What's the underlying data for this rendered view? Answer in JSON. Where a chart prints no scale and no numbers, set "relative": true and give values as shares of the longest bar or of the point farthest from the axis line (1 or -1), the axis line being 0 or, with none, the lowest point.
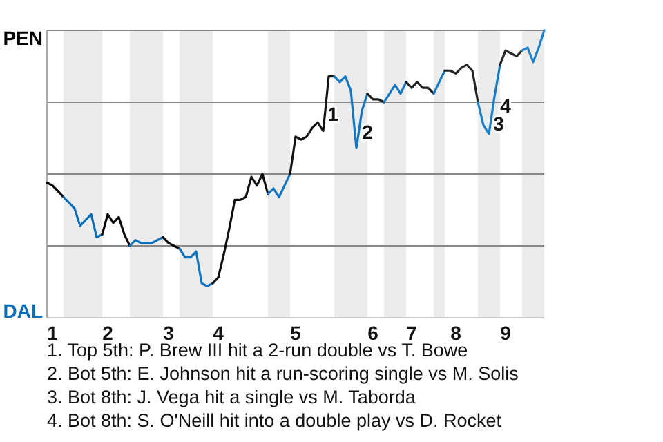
{
  "chart_data": {
    "type": "line",
    "relative": true,
    "grid": true,
    "marker": "none",
    "line_style": "solid",
    "categories": [
      null,
      "1",
      null,
      null,
      null,
      null,
      null,
      null,
      null,
      null,
      null,
      "2",
      null,
      null,
      null,
      null,
      null,
      null,
      null,
      null,
      null,
      null,
      "3",
      null,
      null,
      null,
      null,
      null,
      null,
      null,
      null,
      "4",
      null,
      null,
      null,
      null,
      null,
      null,
      null,
      null,
      null,
      null,
      null,
      null,
      null,
      "5",
      null,
      null,
      null,
      null,
      null,
      null,
      null,
      null,
      null,
      null,
      null,
      null,
      null,
      "6",
      null,
      null,
      null,
      null,
      null,
      null,
      "7",
      null,
      null,
      null,
      null,
      null,
      null,
      null,
      "8",
      null,
      null,
      null,
      null,
      null,
      null,
      null,
      null,
      "9",
      null,
      null,
      null,
      null,
      null,
      null,
      null
    ],
    "series": [
      {
        "name": "PEN",
        "color": "#000000",
        "values": [
          0.47,
          0.46,
          0.44,
          0.42,
          null,
          null,
          null,
          null,
          null,
          null,
          null,
          null,
          null,
          null,
          null,
          null,
          null,
          null,
          null,
          null,
          null,
          null,
          null,
          null,
          null,
          null,
          null,
          null,
          null,
          null,
          null,
          null,
          null,
          null,
          null,
          null,
          null,
          null,
          null,
          null,
          null,
          null,
          null,
          null,
          null,
          null,
          null,
          null,
          null,
          null,
          null,
          null,
          null,
          null,
          null,
          null,
          null,
          null,
          null,
          null,
          null,
          null,
          null,
          null,
          null,
          null,
          null,
          null,
          null,
          null,
          null,
          null,
          null,
          null,
          null,
          null,
          null,
          null,
          null,
          null,
          null,
          null,
          null,
          null,
          null,
          null,
          null,
          null,
          null,
          null,
          null
        ]
      },
      {
        "name": "DAL",
        "color": "#0a6fb8",
        "values": [
          null,
          null,
          null,
          0.42,
          0.4,
          0.38,
          0.32,
          0.34,
          0.36,
          0.28,
          0.29,
          null,
          null,
          null,
          null,
          null,
          null,
          null,
          null,
          null,
          null,
          null,
          null,
          null,
          null,
          null,
          null,
          null,
          null,
          null,
          null,
          null,
          null,
          null,
          null,
          null,
          null,
          null,
          null,
          null,
          null,
          null,
          null,
          null,
          null,
          null,
          null,
          null,
          null,
          null,
          null,
          null,
          null,
          null,
          null,
          null,
          null,
          null,
          null,
          null,
          null,
          null,
          null,
          null,
          null,
          null,
          null,
          null,
          null,
          null,
          null,
          null,
          null,
          null,
          null,
          null,
          null,
          null,
          null,
          null,
          null,
          null,
          null,
          null,
          null,
          null,
          null,
          null,
          null,
          null,
          null
        ]
      },
      {
        "color": "#050505",
        "values": [
          null,
          null,
          null,
          null,
          null,
          null,
          null,
          null,
          null,
          null,
          0.29,
          0.36,
          0.33,
          0.35,
          0.29,
          0.25,
          null,
          null,
          null,
          null,
          null,
          null,
          null,
          null,
          null,
          null,
          null,
          null,
          null,
          null,
          null,
          null,
          null,
          null,
          null,
          null,
          null,
          null,
          null,
          null,
          null,
          null,
          null,
          null,
          null,
          null,
          null,
          null,
          null,
          null,
          null,
          null,
          null,
          null,
          null,
          null,
          null,
          null,
          null,
          null,
          null,
          null,
          null,
          null,
          null,
          null,
          null,
          null,
          null,
          null,
          null,
          null,
          null,
          null,
          null,
          null,
          null,
          null,
          null,
          null,
          null,
          null,
          null,
          null,
          null,
          null,
          null,
          null,
          null,
          null,
          null
        ]
      },
      {
        "color": "#0c71ba",
        "values": [
          null,
          null,
          null,
          null,
          null,
          null,
          null,
          null,
          null,
          null,
          null,
          null,
          null,
          null,
          null,
          0.25,
          0.27,
          0.26,
          0.26,
          0.26,
          0.27,
          0.28,
          null,
          null,
          null,
          null,
          null,
          null,
          null,
          null,
          null,
          null,
          null,
          null,
          null,
          null,
          null,
          null,
          null,
          null,
          null,
          null,
          null,
          null,
          null,
          null,
          null,
          null,
          null,
          null,
          null,
          null,
          null,
          null,
          null,
          null,
          null,
          null,
          null,
          null,
          null,
          null,
          null,
          null,
          null,
          null,
          null,
          null,
          null,
          null,
          null,
          null,
          null,
          null,
          null,
          null,
          null,
          null,
          null,
          null,
          null,
          null,
          null,
          null,
          null,
          null,
          null,
          null,
          null,
          null,
          null
        ]
      },
      {
        "color": "#0a0a0a",
        "values": [
          null,
          null,
          null,
          null,
          null,
          null,
          null,
          null,
          null,
          null,
          null,
          null,
          null,
          null,
          null,
          null,
          null,
          null,
          null,
          null,
          null,
          0.28,
          0.26,
          0.25,
          0.24,
          null,
          null,
          null,
          null,
          null,
          null,
          null,
          null,
          null,
          null,
          null,
          null,
          null,
          null,
          null,
          null,
          null,
          null,
          null,
          null,
          null,
          null,
          null,
          null,
          null,
          null,
          null,
          null,
          null,
          null,
          null,
          null,
          null,
          null,
          null,
          null,
          null,
          null,
          null,
          null,
          null,
          null,
          null,
          null,
          null,
          null,
          null,
          null,
          null,
          null,
          null,
          null,
          null,
          null,
          null,
          null,
          null,
          null,
          null,
          null,
          null,
          null,
          null,
          null,
          null,
          null
        ]
      },
      {
        "color": "#0e73bc",
        "values": [
          null,
          null,
          null,
          null,
          null,
          null,
          null,
          null,
          null,
          null,
          null,
          null,
          null,
          null,
          null,
          null,
          null,
          null,
          null,
          null,
          null,
          null,
          null,
          null,
          0.24,
          0.21,
          0.21,
          0.23,
          0.12,
          0.11,
          0.12,
          null,
          null,
          null,
          null,
          null,
          null,
          null,
          null,
          null,
          null,
          null,
          null,
          null,
          null,
          null,
          null,
          null,
          null,
          null,
          null,
          null,
          null,
          null,
          null,
          null,
          null,
          null,
          null,
          null,
          null,
          null,
          null,
          null,
          null,
          null,
          null,
          null,
          null,
          null,
          null,
          null,
          null,
          null,
          null,
          null,
          null,
          null,
          null,
          null,
          null,
          null,
          null,
          null,
          null,
          null,
          null,
          null,
          null,
          null,
          null
        ]
      },
      {
        "color": "#0f0f0f",
        "values": [
          null,
          null,
          null,
          null,
          null,
          null,
          null,
          null,
          null,
          null,
          null,
          null,
          null,
          null,
          null,
          null,
          null,
          null,
          null,
          null,
          null,
          null,
          null,
          null,
          null,
          null,
          null,
          null,
          null,
          null,
          0.12,
          0.14,
          0.22,
          0.31,
          0.41,
          0.41,
          0.42,
          0.49,
          0.46,
          0.5,
          0.43,
          null,
          null,
          null,
          null,
          null,
          null,
          null,
          null,
          null,
          null,
          null,
          null,
          null,
          null,
          null,
          null,
          null,
          null,
          null,
          null,
          null,
          null,
          null,
          null,
          null,
          null,
          null,
          null,
          null,
          null,
          null,
          null,
          null,
          null,
          null,
          null,
          null,
          null,
          null,
          null,
          null,
          null,
          null,
          null,
          null,
          null,
          null,
          null,
          null,
          null
        ]
      },
      {
        "color": "#1075be",
        "values": [
          null,
          null,
          null,
          null,
          null,
          null,
          null,
          null,
          null,
          null,
          null,
          null,
          null,
          null,
          null,
          null,
          null,
          null,
          null,
          null,
          null,
          null,
          null,
          null,
          null,
          null,
          null,
          null,
          null,
          null,
          null,
          null,
          null,
          null,
          null,
          null,
          null,
          null,
          null,
          null,
          0.43,
          0.45,
          0.42,
          0.46,
          0.5,
          null,
          null,
          null,
          null,
          null,
          null,
          null,
          null,
          null,
          null,
          null,
          null,
          null,
          null,
          null,
          null,
          null,
          null,
          null,
          null,
          null,
          null,
          null,
          null,
          null,
          null,
          null,
          null,
          null,
          null,
          null,
          null,
          null,
          null,
          null,
          null,
          null,
          null,
          null,
          null,
          null,
          null,
          null,
          null,
          null,
          null
        ]
      },
      {
        "color": "#141414",
        "values": [
          null,
          null,
          null,
          null,
          null,
          null,
          null,
          null,
          null,
          null,
          null,
          null,
          null,
          null,
          null,
          null,
          null,
          null,
          null,
          null,
          null,
          null,
          null,
          null,
          null,
          null,
          null,
          null,
          null,
          null,
          null,
          null,
          null,
          null,
          null,
          null,
          null,
          null,
          null,
          null,
          null,
          null,
          null,
          null,
          0.5,
          0.63,
          0.62,
          0.63,
          0.66,
          0.68,
          0.65,
          0.84,
          0.84,
          null,
          null,
          null,
          null,
          null,
          null,
          null,
          null,
          null,
          null,
          null,
          null,
          null,
          null,
          null,
          null,
          null,
          null,
          null,
          null,
          null,
          null,
          null,
          null,
          null,
          null,
          null,
          null,
          null,
          null,
          null,
          null,
          null,
          null,
          null,
          null,
          null,
          null
        ]
      },
      {
        "color": "#1277c0",
        "values": [
          null,
          null,
          null,
          null,
          null,
          null,
          null,
          null,
          null,
          null,
          null,
          null,
          null,
          null,
          null,
          null,
          null,
          null,
          null,
          null,
          null,
          null,
          null,
          null,
          null,
          null,
          null,
          null,
          null,
          null,
          null,
          null,
          null,
          null,
          null,
          null,
          null,
          null,
          null,
          null,
          null,
          null,
          null,
          null,
          null,
          null,
          null,
          null,
          null,
          null,
          null,
          null,
          0.84,
          0.82,
          0.84,
          0.79,
          0.59,
          0.72,
          0.78,
          null,
          null,
          null,
          null,
          null,
          null,
          null,
          null,
          null,
          null,
          null,
          null,
          null,
          null,
          null,
          null,
          null,
          null,
          null,
          null,
          null,
          null,
          null,
          null,
          null,
          null,
          null,
          null,
          null,
          null,
          null,
          null
        ]
      },
      {
        "color": "#191919",
        "values": [
          null,
          null,
          null,
          null,
          null,
          null,
          null,
          null,
          null,
          null,
          null,
          null,
          null,
          null,
          null,
          null,
          null,
          null,
          null,
          null,
          null,
          null,
          null,
          null,
          null,
          null,
          null,
          null,
          null,
          null,
          null,
          null,
          null,
          null,
          null,
          null,
          null,
          null,
          null,
          null,
          null,
          null,
          null,
          null,
          null,
          null,
          null,
          null,
          null,
          null,
          null,
          null,
          null,
          null,
          null,
          null,
          null,
          null,
          0.78,
          0.76,
          0.76,
          0.75,
          null,
          null,
          null,
          null,
          null,
          null,
          null,
          null,
          null,
          null,
          null,
          null,
          null,
          null,
          null,
          null,
          null,
          null,
          null,
          null,
          null,
          null,
          null,
          null,
          null,
          null,
          null,
          null,
          null
        ]
      },
      {
        "color": "#1479c2",
        "values": [
          null,
          null,
          null,
          null,
          null,
          null,
          null,
          null,
          null,
          null,
          null,
          null,
          null,
          null,
          null,
          null,
          null,
          null,
          null,
          null,
          null,
          null,
          null,
          null,
          null,
          null,
          null,
          null,
          null,
          null,
          null,
          null,
          null,
          null,
          null,
          null,
          null,
          null,
          null,
          null,
          null,
          null,
          null,
          null,
          null,
          null,
          null,
          null,
          null,
          null,
          null,
          null,
          null,
          null,
          null,
          null,
          null,
          null,
          null,
          null,
          null,
          0.75,
          0.78,
          0.81,
          0.78,
          0.82,
          null,
          null,
          null,
          null,
          null,
          null,
          null,
          null,
          null,
          null,
          null,
          null,
          null,
          null,
          null,
          null,
          null,
          null,
          null,
          null,
          null,
          null,
          null,
          null,
          null
        ]
      },
      {
        "color": "#1e1e1e",
        "values": [
          null,
          null,
          null,
          null,
          null,
          null,
          null,
          null,
          null,
          null,
          null,
          null,
          null,
          null,
          null,
          null,
          null,
          null,
          null,
          null,
          null,
          null,
          null,
          null,
          null,
          null,
          null,
          null,
          null,
          null,
          null,
          null,
          null,
          null,
          null,
          null,
          null,
          null,
          null,
          null,
          null,
          null,
          null,
          null,
          null,
          null,
          null,
          null,
          null,
          null,
          null,
          null,
          null,
          null,
          null,
          null,
          null,
          null,
          null,
          null,
          null,
          null,
          null,
          null,
          null,
          0.82,
          0.8,
          0.82,
          0.8,
          0.8,
          0.78,
          null,
          null,
          null,
          null,
          null,
          null,
          null,
          null,
          null,
          null,
          null,
          null,
          null,
          null,
          null,
          null,
          null,
          null,
          null,
          null
        ]
      },
      {
        "color": "#167bc4",
        "values": [
          null,
          null,
          null,
          null,
          null,
          null,
          null,
          null,
          null,
          null,
          null,
          null,
          null,
          null,
          null,
          null,
          null,
          null,
          null,
          null,
          null,
          null,
          null,
          null,
          null,
          null,
          null,
          null,
          null,
          null,
          null,
          null,
          null,
          null,
          null,
          null,
          null,
          null,
          null,
          null,
          null,
          null,
          null,
          null,
          null,
          null,
          null,
          null,
          null,
          null,
          null,
          null,
          null,
          null,
          null,
          null,
          null,
          null,
          null,
          null,
          null,
          null,
          null,
          null,
          null,
          null,
          null,
          null,
          null,
          null,
          0.78,
          0.82,
          0.86,
          null,
          null,
          null,
          null,
          null,
          null,
          null,
          null,
          null,
          null,
          null,
          null,
          null,
          null,
          null,
          null,
          null,
          null
        ]
      },
      {
        "color": "#232323",
        "values": [
          null,
          null,
          null,
          null,
          null,
          null,
          null,
          null,
          null,
          null,
          null,
          null,
          null,
          null,
          null,
          null,
          null,
          null,
          null,
          null,
          null,
          null,
          null,
          null,
          null,
          null,
          null,
          null,
          null,
          null,
          null,
          null,
          null,
          null,
          null,
          null,
          null,
          null,
          null,
          null,
          null,
          null,
          null,
          null,
          null,
          null,
          null,
          null,
          null,
          null,
          null,
          null,
          null,
          null,
          null,
          null,
          null,
          null,
          null,
          null,
          null,
          null,
          null,
          null,
          null,
          null,
          null,
          null,
          null,
          null,
          null,
          null,
          0.86,
          0.86,
          0.85,
          0.87,
          0.88,
          0.86,
          0.75,
          null,
          null,
          null,
          null,
          null,
          null,
          null,
          null,
          null,
          null,
          null,
          null
        ]
      },
      {
        "color": "#187dc6",
        "values": [
          null,
          null,
          null,
          null,
          null,
          null,
          null,
          null,
          null,
          null,
          null,
          null,
          null,
          null,
          null,
          null,
          null,
          null,
          null,
          null,
          null,
          null,
          null,
          null,
          null,
          null,
          null,
          null,
          null,
          null,
          null,
          null,
          null,
          null,
          null,
          null,
          null,
          null,
          null,
          null,
          null,
          null,
          null,
          null,
          null,
          null,
          null,
          null,
          null,
          null,
          null,
          null,
          null,
          null,
          null,
          null,
          null,
          null,
          null,
          null,
          null,
          null,
          null,
          null,
          null,
          null,
          null,
          null,
          null,
          null,
          null,
          null,
          null,
          null,
          null,
          null,
          null,
          null,
          0.75,
          0.67,
          0.64,
          0.77,
          0.88,
          null,
          null,
          null,
          null,
          null,
          null,
          null,
          null
        ]
      },
      {
        "color": "#282828",
        "values": [
          null,
          null,
          null,
          null,
          null,
          null,
          null,
          null,
          null,
          null,
          null,
          null,
          null,
          null,
          null,
          null,
          null,
          null,
          null,
          null,
          null,
          null,
          null,
          null,
          null,
          null,
          null,
          null,
          null,
          null,
          null,
          null,
          null,
          null,
          null,
          null,
          null,
          null,
          null,
          null,
          null,
          null,
          null,
          null,
          null,
          null,
          null,
          null,
          null,
          null,
          null,
          null,
          null,
          null,
          null,
          null,
          null,
          null,
          null,
          null,
          null,
          null,
          null,
          null,
          null,
          null,
          null,
          null,
          null,
          null,
          null,
          null,
          null,
          null,
          null,
          null,
          null,
          null,
          null,
          null,
          null,
          null,
          0.88,
          0.93,
          0.92,
          0.91,
          0.93,
          null,
          null,
          null,
          null
        ]
      },
      {
        "color": "#1a7fc8",
        "values": [
          null,
          null,
          null,
          null,
          null,
          null,
          null,
          null,
          null,
          null,
          null,
          null,
          null,
          null,
          null,
          null,
          null,
          null,
          null,
          null,
          null,
          null,
          null,
          null,
          null,
          null,
          null,
          null,
          null,
          null,
          null,
          null,
          null,
          null,
          null,
          null,
          null,
          null,
          null,
          null,
          null,
          null,
          null,
          null,
          null,
          null,
          null,
          null,
          null,
          null,
          null,
          null,
          null,
          null,
          null,
          null,
          null,
          null,
          null,
          null,
          null,
          null,
          null,
          null,
          null,
          null,
          null,
          null,
          null,
          null,
          null,
          null,
          null,
          null,
          null,
          null,
          null,
          null,
          null,
          null,
          null,
          null,
          null,
          null,
          null,
          null,
          0.93,
          0.94,
          0.89,
          0.94,
          1
        ]
      }
    ],
    "annotations": [
      "1",
      "2",
      "3",
      "4",
      "1. Top 5th: P. Brew III hit a 2-run double vs T. Bowe",
      "2. Bot 5th: E. Johnson hit a run-scoring single vs M. Solis",
      "3. Bot 8th: J. Vega hit a single vs M. Taborda",
      "4. Bot 8th: S. O'Neill hit into a double play vs D. Rocket"
    ]
  }
}
